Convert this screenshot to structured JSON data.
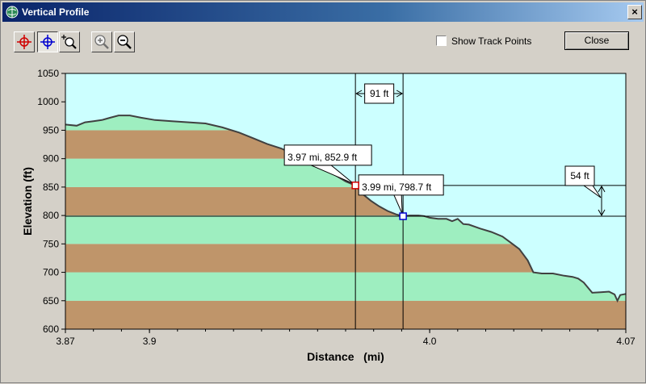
{
  "window": {
    "title": "Vertical Profile",
    "close_glyph": "×"
  },
  "toolbar": {
    "tools": [
      {
        "name": "red-crosshair-icon",
        "color": "#d00000"
      },
      {
        "name": "blue-crosshair-icon",
        "color": "#0000d0"
      },
      {
        "name": "zoom-region-icon"
      },
      {
        "name": "zoom-in-icon"
      },
      {
        "name": "zoom-out-icon"
      }
    ],
    "show_track_points_label": "Show Track Points",
    "show_track_points_checked": false,
    "close_label": "Close"
  },
  "colors": {
    "plot_bg": "#ccffff",
    "band_brown": "#bf956a",
    "band_green": "#9eeec0",
    "profile_line": "#404040",
    "red_marker": "#d00000",
    "blue_marker": "#0000d0"
  },
  "chart_data": {
    "type": "area",
    "xlabel": "Distance   (mi)",
    "ylabel": "Elevation (ft)",
    "xlim": [
      3.87,
      4.07
    ],
    "ylim": [
      600,
      1050
    ],
    "x_ticks": [
      3.87,
      3.9,
      4.0,
      4.07
    ],
    "x_tick_labels": [
      "3.87",
      "3.9",
      "4.0",
      "4.07"
    ],
    "y_ticks": [
      600,
      650,
      700,
      750,
      800,
      850,
      900,
      950,
      1000,
      1050
    ],
    "y_tick_labels": [
      "600",
      "650",
      "700",
      "750",
      "800",
      "850",
      "900",
      "950",
      "1000",
      "1050"
    ],
    "bands": [
      {
        "from": 600,
        "to": 650,
        "color": "brown"
      },
      {
        "from": 650,
        "to": 700,
        "color": "green"
      },
      {
        "from": 700,
        "to": 750,
        "color": "brown"
      },
      {
        "from": 750,
        "to": 800,
        "color": "green"
      },
      {
        "from": 800,
        "to": 850,
        "color": "brown"
      },
      {
        "from": 850,
        "to": 900,
        "color": "green"
      },
      {
        "from": 900,
        "to": 950,
        "color": "brown"
      },
      {
        "from": 950,
        "to": 975,
        "color": "green"
      }
    ],
    "profile": [
      [
        3.87,
        960
      ],
      [
        3.874,
        958
      ],
      [
        3.877,
        964
      ],
      [
        3.88,
        966
      ],
      [
        3.883,
        968
      ],
      [
        3.886,
        972
      ],
      [
        3.889,
        976
      ],
      [
        3.893,
        976
      ],
      [
        3.897,
        972
      ],
      [
        3.902,
        968
      ],
      [
        3.908,
        966
      ],
      [
        3.914,
        964
      ],
      [
        3.92,
        962
      ],
      [
        3.926,
        955
      ],
      [
        3.932,
        946
      ],
      [
        3.937,
        936
      ],
      [
        3.942,
        926
      ],
      [
        3.947,
        918
      ],
      [
        3.951,
        909
      ],
      [
        3.955,
        900
      ],
      [
        3.958,
        894
      ],
      [
        3.962,
        886
      ],
      [
        3.966,
        872
      ],
      [
        3.97,
        860
      ],
      [
        3.9735,
        853
      ],
      [
        3.976,
        838
      ],
      [
        3.979,
        826
      ],
      [
        3.982,
        816
      ],
      [
        3.985,
        808
      ],
      [
        3.988,
        802
      ],
      [
        3.9905,
        799
      ],
      [
        3.993,
        800
      ],
      [
        3.996,
        800
      ],
      [
        3.998,
        799
      ],
      [
        4.0,
        796
      ],
      [
        4.003,
        794
      ],
      [
        4.006,
        794
      ],
      [
        4.008,
        790
      ],
      [
        4.01,
        794
      ],
      [
        4.012,
        785
      ],
      [
        4.014,
        784
      ],
      [
        4.018,
        777
      ],
      [
        4.022,
        771
      ],
      [
        4.026,
        763
      ],
      [
        4.029,
        752
      ],
      [
        4.032,
        741
      ],
      [
        4.035,
        721
      ],
      [
        4.037,
        700
      ],
      [
        4.04,
        698
      ],
      [
        4.044,
        698
      ],
      [
        4.048,
        694
      ],
      [
        4.051,
        692
      ],
      [
        4.053,
        689
      ],
      [
        4.055,
        682
      ],
      [
        4.058,
        664
      ],
      [
        4.061,
        665
      ],
      [
        4.064,
        666
      ],
      [
        4.066,
        661
      ],
      [
        4.067,
        650
      ],
      [
        4.068,
        660
      ],
      [
        4.07,
        662
      ]
    ],
    "red_marker": {
      "x": 3.9735,
      "y": 852.9,
      "label": "3.97 mi, 852.9 ft"
    },
    "blue_marker": {
      "x": 3.9905,
      "y": 798.7,
      "label": "3.99 mi, 798.7 ft"
    },
    "distance_annotation": "91 ft",
    "elevation_annotation": "54 ft"
  }
}
